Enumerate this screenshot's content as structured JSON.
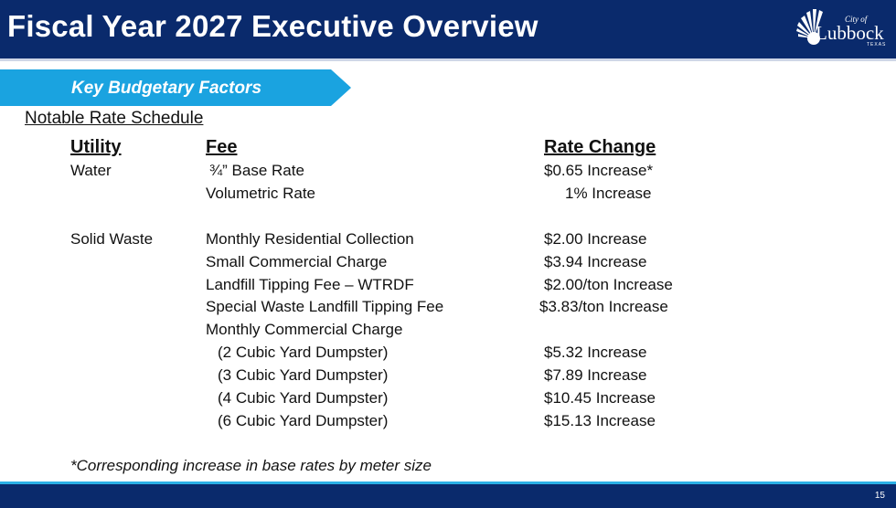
{
  "header": {
    "title": "Fiscal Year 2027 Executive Overview",
    "logo": {
      "city_of": "City of",
      "name": "Lubbock",
      "state": "TEXAS"
    }
  },
  "banner": {
    "label": "Key Budgetary Factors"
  },
  "section": {
    "title": "Notable Rate Schedule"
  },
  "table": {
    "headers": {
      "utility": "Utility",
      "fee": "Fee",
      "rate_change": "Rate Change"
    },
    "rows": [
      {
        "utility": "Water",
        "fee": "¾” Base Rate",
        "rate": "$0.65 Increase*"
      },
      {
        "utility": "",
        "fee": "Volumetric Rate",
        "rate": "1% Increase"
      },
      {
        "utility": "Solid Waste",
        "fee": "Monthly Residential Collection",
        "rate": "$2.00 Increase"
      },
      {
        "utility": "",
        "fee": "Small Commercial Charge",
        "rate": "$3.94 Increase"
      },
      {
        "utility": "",
        "fee": "Landfill Tipping Fee – WTRDF",
        "rate": "$2.00/ton Increase"
      },
      {
        "utility": "",
        "fee": "Special Waste Landfill Tipping Fee",
        "rate": "$3.83/ton Increase"
      },
      {
        "utility": "",
        "fee": "Monthly Commercial Charge",
        "rate": ""
      },
      {
        "utility": "",
        "fee": "(2 Cubic Yard Dumpster)",
        "rate": "$5.32 Increase"
      },
      {
        "utility": "",
        "fee": "(3 Cubic Yard Dumpster)",
        "rate": "$7.89 Increase"
      },
      {
        "utility": "",
        "fee": "(4 Cubic Yard Dumpster)",
        "rate": "$10.45 Increase"
      },
      {
        "utility": "",
        "fee": "(6 Cubic Yard Dumpster)",
        "rate": "$15.13 Increase"
      }
    ]
  },
  "footnote": "*Corresponding increase in base rates by meter size",
  "footer": {
    "page_number": "15"
  },
  "colors": {
    "navy": "#0a2a6c",
    "banner_blue": "#1aa3e0",
    "footer_accent": "#2bb0e6"
  }
}
